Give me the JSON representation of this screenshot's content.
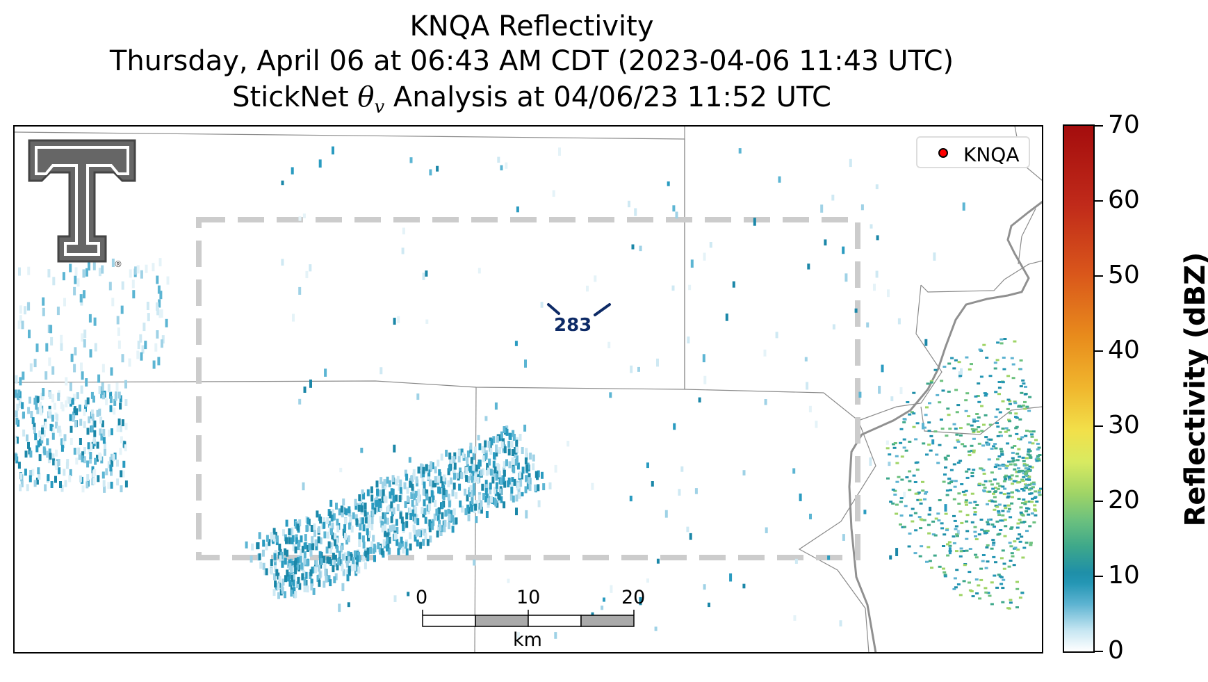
{
  "title": {
    "line1": "KNQA Reflectivity",
    "line2": "Thursday, April 06 at 06:43 AM CDT (2023-04-06 11:43 UTC)",
    "line3_prefix": "StickNet ",
    "line3_theta": "θ",
    "line3_sub": "v",
    "line3_suffix": " Analysis at 04/06/23 11:52 UTC"
  },
  "legend": {
    "label": "KNQA",
    "marker_color": "#ff0000"
  },
  "station_barb": {
    "value": "283",
    "color": "#0d2a66"
  },
  "colorbar": {
    "label": "Reflectivity (dBZ)",
    "ticks": [
      "70",
      "60",
      "50",
      "40",
      "30",
      "20",
      "10",
      "0"
    ],
    "range": [
      0,
      70
    ]
  },
  "scale_bar": {
    "labels": [
      "0",
      "10",
      "20"
    ],
    "unit": "km"
  },
  "colors": {
    "analysis_box": "#cccccc",
    "boundary": "#808080",
    "echo": "#2a9bc0"
  },
  "logo": {
    "name": "texas-tech-double-t-logo",
    "mark": "®"
  }
}
